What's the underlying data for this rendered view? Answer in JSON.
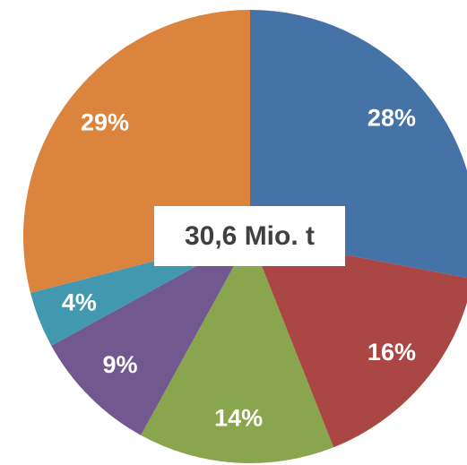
{
  "chart_data": {
    "type": "pie",
    "annotation": "30,6 Mio. t",
    "categories": [
      null,
      null,
      null,
      null,
      null,
      null
    ],
    "values": [
      28,
      16,
      14,
      9,
      4,
      29
    ],
    "value_labels": [
      "28%",
      "16%",
      "14%",
      "9%",
      "4%",
      "29%"
    ],
    "colors": [
      "#4572a7",
      "#aa4643",
      "#89a54e",
      "#71588f",
      "#4198af",
      "#db843d"
    ]
  }
}
